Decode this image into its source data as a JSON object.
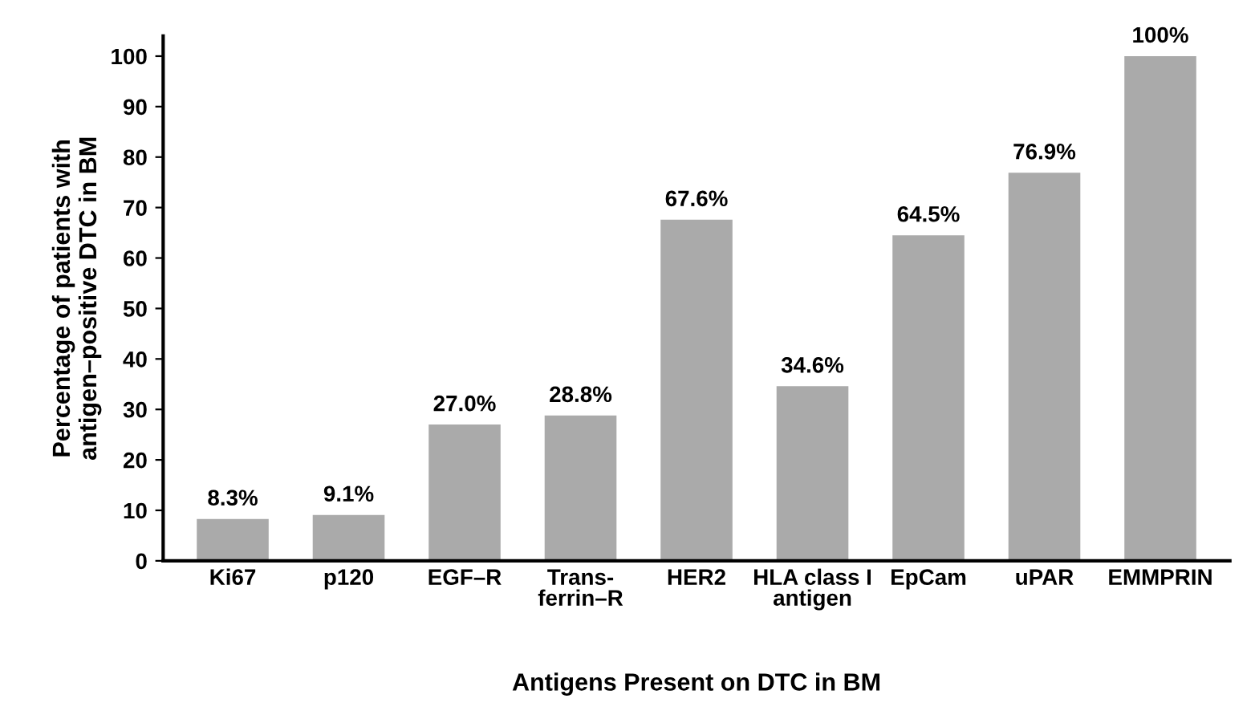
{
  "chart_data": {
    "type": "bar",
    "xlabel": "Antigens Present on DTC in BM",
    "ylabel": "Percentage of patients with\nantigen–positive DTC in BM",
    "categories": [
      "Ki67",
      "p120",
      "EGF–R",
      "Trans-\nferrin–R",
      "HER2",
      "HLA class I\nantigen",
      "EpCam",
      "uPAR",
      "EMMPRIN"
    ],
    "values": [
      8.3,
      9.1,
      27.0,
      28.8,
      67.6,
      34.6,
      64.5,
      76.9,
      100
    ],
    "value_labels": [
      "8.3%",
      "9.1%",
      "27.0%",
      "28.8%",
      "67.6%",
      "34.6%",
      "64.5%",
      "76.9%",
      "100%"
    ],
    "color": "#aaaaaa",
    "ylim": [
      0,
      104
    ],
    "yticks": [
      0,
      10,
      20,
      30,
      40,
      50,
      60,
      70,
      80,
      90,
      100
    ],
    "grid": false,
    "legend": false
  }
}
